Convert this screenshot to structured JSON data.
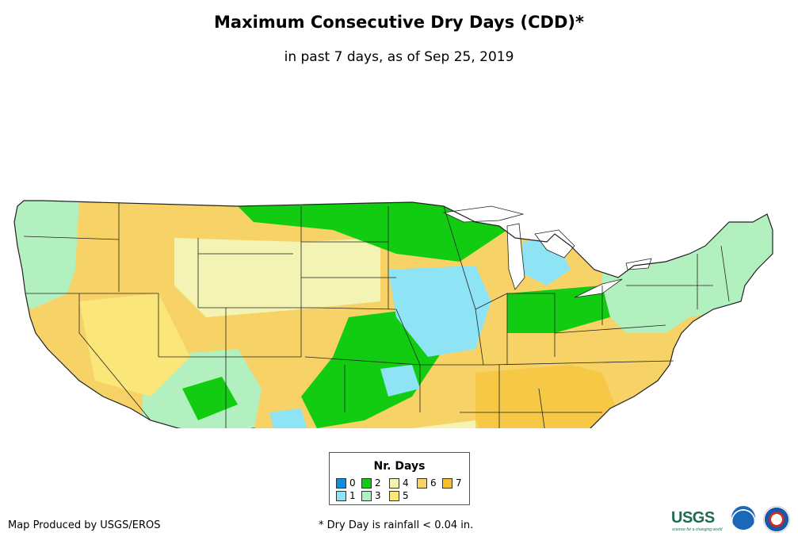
{
  "title": "Maximum Consecutive Dry Days (CDD)*",
  "subtitle": "in past 7 days, as of Sep 25, 2019",
  "legend": {
    "title": "Nr. Days",
    "items": [
      {
        "label": "0",
        "color": "#0b8fde"
      },
      {
        "label": "1",
        "color": "#8ee4f5"
      },
      {
        "label": "2",
        "color": "#12cc12"
      },
      {
        "label": "3",
        "color": "#b2f1bf"
      },
      {
        "label": "4",
        "color": "#f3f3b3"
      },
      {
        "label": "5",
        "color": "#fbe67a"
      },
      {
        "label": "6",
        "color": "#f7d266"
      },
      {
        "label": "7",
        "color": "#f6bf2a"
      }
    ]
  },
  "credit": "Map Produced by USGS/EROS",
  "footnote": "* Dry Day is rainfall < 0.04 in.",
  "logos": {
    "usgs": "USGS",
    "usgs_tagline": "science for a changing world",
    "noaa": "noaa-logo-icon",
    "nws": "nws-logo-icon"
  },
  "map": {
    "base_color": "#f7d266",
    "border_color": "#222222"
  }
}
